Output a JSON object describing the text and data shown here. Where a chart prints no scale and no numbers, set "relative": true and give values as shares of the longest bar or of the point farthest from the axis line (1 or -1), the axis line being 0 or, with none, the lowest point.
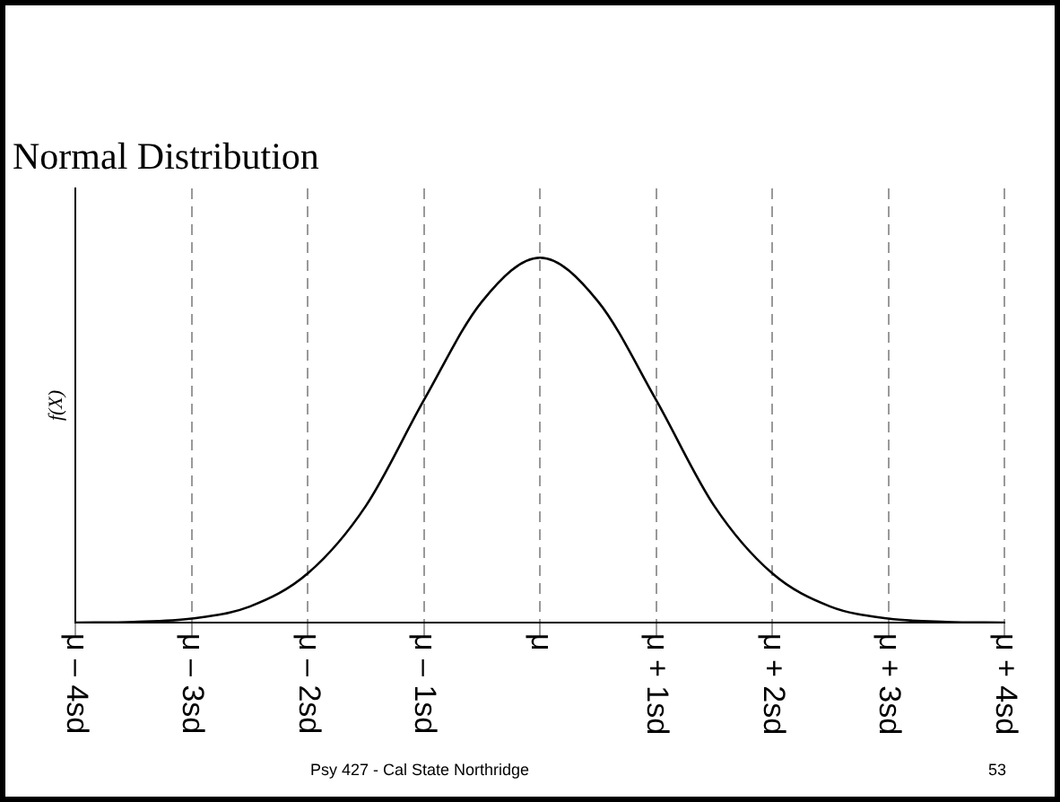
{
  "chart_data": {
    "type": "line",
    "title": "Normal Distribution",
    "ylabel": "f(X)",
    "relative": true,
    "x": [
      -4,
      -3.5,
      -3,
      -2.5,
      -2,
      -1.5,
      -1,
      -0.5,
      0,
      0.5,
      1,
      1.5,
      2,
      2.5,
      3,
      3.5,
      4
    ],
    "series": [
      {
        "color": "#000000",
        "values": [
          0,
          0.002,
          0.011,
          0.044,
          0.135,
          0.32,
          0.61,
          0.88,
          1,
          0.88,
          0.61,
          0.32,
          0.135,
          0.044,
          0.011,
          0.002,
          0
        ]
      }
    ],
    "xlim": [
      -4,
      4
    ],
    "xticks": [
      {
        "value": -4,
        "label": "μ – 4sd"
      },
      {
        "value": -3,
        "label": "μ – 3sd"
      },
      {
        "value": -2,
        "label": "μ – 2sd"
      },
      {
        "value": -1,
        "label": "μ – 1sd"
      },
      {
        "value": 0,
        "label": "μ"
      },
      {
        "value": 1,
        "label": "μ + 1sd"
      },
      {
        "value": 2,
        "label": "μ + 2sd"
      },
      {
        "value": 3,
        "label": "μ + 3sd"
      },
      {
        "value": 4,
        "label": "μ + 4sd"
      }
    ],
    "grid": "x",
    "marker": "none",
    "legend": false,
    "annotations": [
      "Psy 427 - Cal State Northridge",
      "53"
    ]
  }
}
